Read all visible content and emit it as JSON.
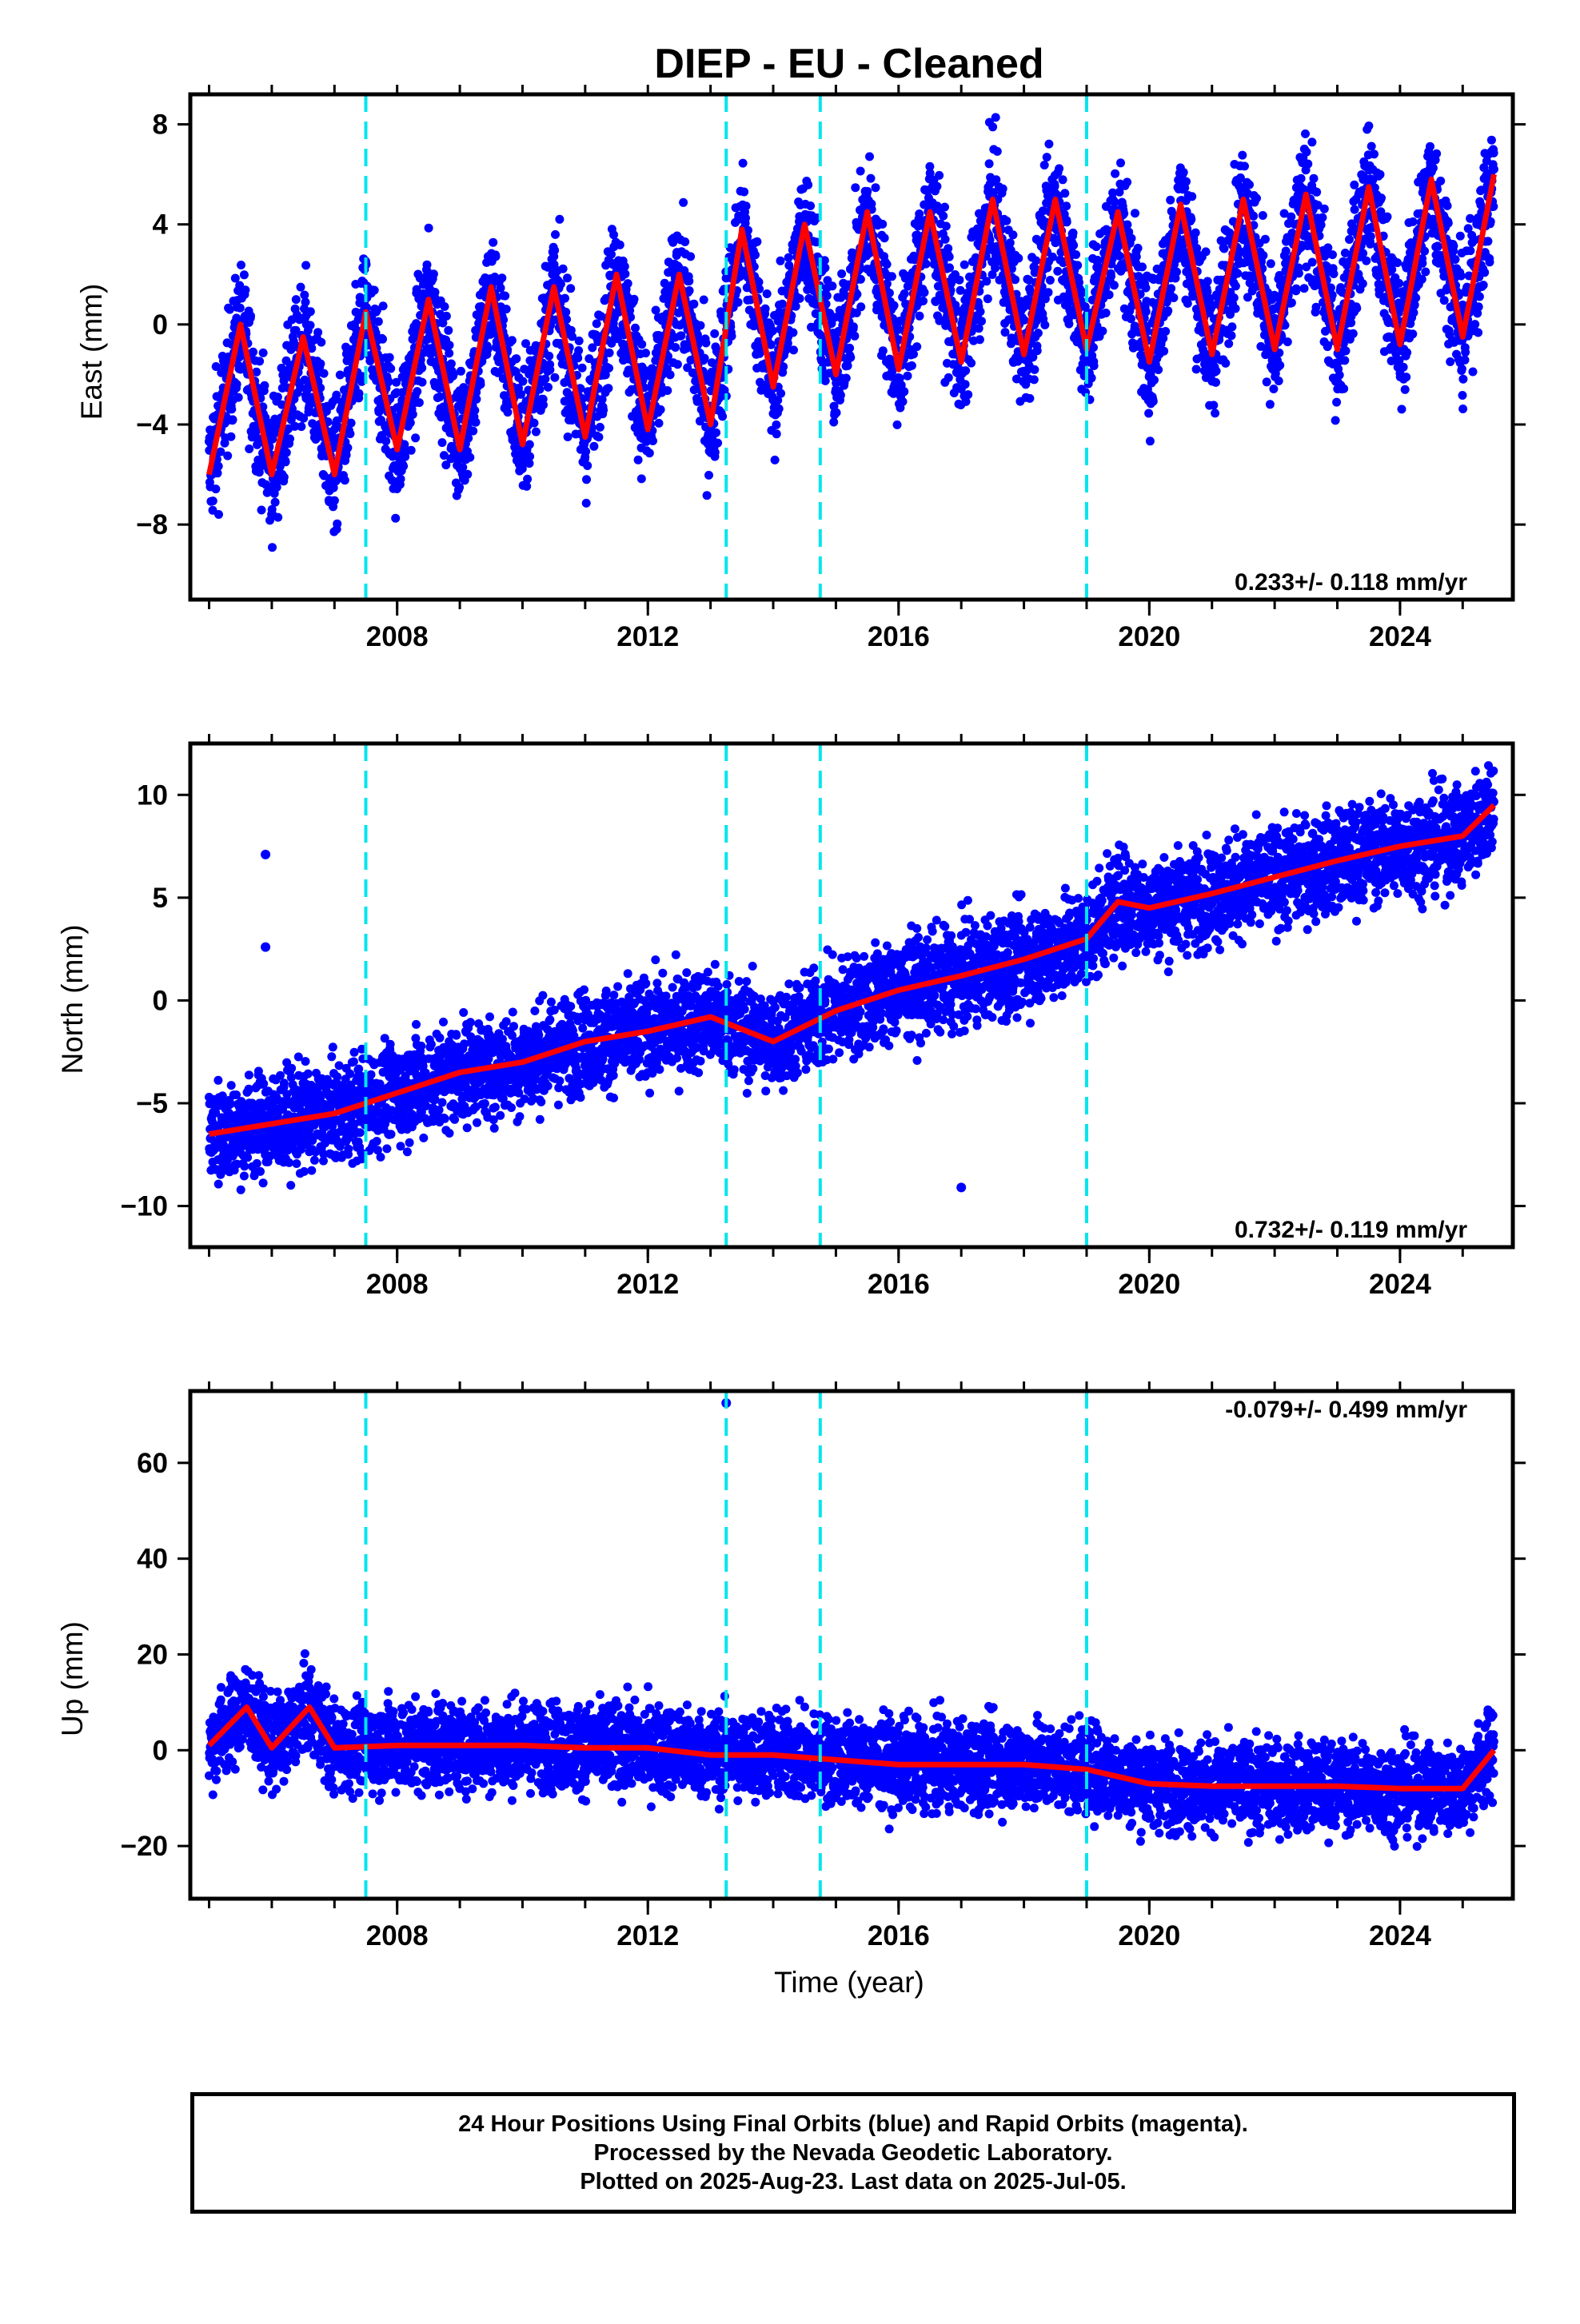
{
  "title": "DIEP  - EU - Cleaned",
  "x_label": "Time (year)",
  "footer": {
    "line1": "24 Hour Positions Using Final Orbits (blue) and Rapid Orbits (magenta).",
    "line2": "Processed by the Nevada Geodetic Laboratory.",
    "line3": "Plotted on 2025-Aug-23. Last data on 2025-Jul-05."
  },
  "colors": {
    "final_orbits": "#0000ff",
    "model": "#ff0000",
    "steps": "#00e5ee",
    "frame": "#000000"
  },
  "chart_data": [
    {
      "type": "scatter",
      "component": "East",
      "ylabel": "East (mm)",
      "xlim": [
        2004.7,
        2025.8
      ],
      "ylim": [
        -11,
        9.2
      ],
      "x_ticks": [
        2008,
        2012,
        2016,
        2020,
        2024
      ],
      "y_ticks": [
        -8,
        -4,
        0,
        4,
        8
      ],
      "y_tick_labels": [
        "−8",
        "−4",
        "0",
        "4",
        "8"
      ],
      "rate_text": "0.233+/- 0.118 mm/yr",
      "rate_position": "bottom-right",
      "trend_mm_per_yr": 0.233,
      "seasonal_amplitude_mm": 3.0,
      "scatter_mm": 1.3,
      "step_epochs": [
        2007.5,
        2013.25,
        2014.75,
        2019.0
      ],
      "data_start": 2005.0,
      "data_end": 2025.5,
      "series": [
        {
          "name": "Final Orbits",
          "color": "blue",
          "samples": [
            [
              2005.0,
              -6.0
            ],
            [
              2005.5,
              0.0
            ],
            [
              2006.0,
              -6.0
            ],
            [
              2006.5,
              -0.5
            ],
            [
              2007.0,
              -6.0
            ],
            [
              2007.5,
              0.5
            ],
            [
              2008.0,
              -5.0
            ],
            [
              2008.5,
              1.0
            ],
            [
              2009.0,
              -5.0
            ],
            [
              2009.5,
              1.5
            ],
            [
              2010.0,
              -4.8
            ],
            [
              2010.5,
              1.5
            ],
            [
              2011.0,
              -4.5
            ],
            [
              2011.5,
              2.0
            ],
            [
              2012.0,
              -4.2
            ],
            [
              2012.5,
              2.0
            ],
            [
              2013.0,
              -4.0
            ],
            [
              2013.5,
              3.8
            ],
            [
              2014.0,
              -2.5
            ],
            [
              2014.5,
              4.0
            ],
            [
              2015.0,
              -2.0
            ],
            [
              2015.5,
              4.5
            ],
            [
              2016.0,
              -1.8
            ],
            [
              2016.5,
              4.5
            ],
            [
              2017.0,
              -1.5
            ],
            [
              2017.5,
              5.0
            ],
            [
              2018.0,
              -1.2
            ],
            [
              2018.5,
              5.0
            ],
            [
              2019.0,
              -1.0
            ],
            [
              2019.5,
              4.5
            ],
            [
              2020.0,
              -1.5
            ],
            [
              2020.5,
              4.8
            ],
            [
              2021.0,
              -1.2
            ],
            [
              2021.5,
              5.0
            ],
            [
              2022.0,
              -1.0
            ],
            [
              2022.5,
              5.2
            ],
            [
              2023.0,
              -1.0
            ],
            [
              2023.5,
              5.5
            ],
            [
              2024.0,
              -0.8
            ],
            [
              2024.5,
              5.8
            ],
            [
              2025.0,
              -0.5
            ],
            [
              2025.5,
              6.0
            ]
          ]
        },
        {
          "name": "Model",
          "color": "red"
        }
      ]
    },
    {
      "type": "scatter",
      "component": "North",
      "ylabel": "North (mm)",
      "xlim": [
        2004.7,
        2025.8
      ],
      "ylim": [
        -12,
        12.5
      ],
      "x_ticks": [
        2008,
        2012,
        2016,
        2020,
        2024
      ],
      "y_ticks": [
        -10,
        -5,
        0,
        5,
        10
      ],
      "y_tick_labels": [
        "−10",
        "−5",
        "0",
        "5",
        "10"
      ],
      "rate_text": "0.732+/- 0.119 mm/yr",
      "rate_position": "bottom-right",
      "trend_mm_per_yr": 0.732,
      "seasonal_amplitude_mm": 0.8,
      "scatter_mm": 1.2,
      "step_epochs": [
        2007.5,
        2013.25,
        2014.75,
        2019.0
      ],
      "data_start": 2005.0,
      "data_end": 2025.5,
      "series": [
        {
          "name": "Final Orbits",
          "color": "blue",
          "samples": [
            [
              2005.0,
              -6.5
            ],
            [
              2006.0,
              -6.0
            ],
            [
              2007.0,
              -5.5
            ],
            [
              2008.0,
              -4.5
            ],
            [
              2009.0,
              -3.5
            ],
            [
              2010.0,
              -3.0
            ],
            [
              2011.0,
              -2.0
            ],
            [
              2012.0,
              -1.5
            ],
            [
              2013.0,
              -0.8
            ],
            [
              2014.0,
              -2.0
            ],
            [
              2015.0,
              -0.5
            ],
            [
              2016.0,
              0.5
            ],
            [
              2017.0,
              1.2
            ],
            [
              2018.0,
              2.0
            ],
            [
              2019.0,
              3.0
            ],
            [
              2019.5,
              4.8
            ],
            [
              2020.0,
              4.5
            ],
            [
              2021.0,
              5.2
            ],
            [
              2022.0,
              6.0
            ],
            [
              2023.0,
              6.8
            ],
            [
              2024.0,
              7.5
            ],
            [
              2025.0,
              8.0
            ],
            [
              2025.5,
              9.5
            ]
          ]
        },
        {
          "name": "Model",
          "color": "red"
        }
      ],
      "outliers": [
        [
          2005.9,
          7.1
        ],
        [
          2005.9,
          2.6
        ],
        [
          2017.0,
          -9.1
        ]
      ]
    },
    {
      "type": "scatter",
      "component": "Up",
      "ylabel": "Up (mm)",
      "xlim": [
        2004.7,
        2025.8
      ],
      "ylim": [
        -31,
        75
      ],
      "x_ticks": [
        2008,
        2012,
        2016,
        2020,
        2024
      ],
      "y_ticks": [
        -20,
        0,
        20,
        40,
        60
      ],
      "y_tick_labels": [
        "−20",
        "0",
        "20",
        "40",
        "60"
      ],
      "rate_text": "-0.079+/- 0.499 mm/yr",
      "rate_position": "top-right",
      "trend_mm_per_yr": -0.079,
      "seasonal_amplitude_mm": 5.0,
      "scatter_mm": 4.5,
      "step_epochs": [
        2007.5,
        2013.25,
        2014.75,
        2019.0
      ],
      "data_start": 2005.0,
      "data_end": 2025.5,
      "series": [
        {
          "name": "Final Orbits",
          "color": "blue",
          "samples": [
            [
              2005.0,
              1.0
            ],
            [
              2005.6,
              9.0
            ],
            [
              2006.0,
              0.5
            ],
            [
              2006.6,
              9.0
            ],
            [
              2007.0,
              0.5
            ],
            [
              2008.0,
              1.0
            ],
            [
              2009.0,
              1.0
            ],
            [
              2010.0,
              1.0
            ],
            [
              2011.0,
              0.5
            ],
            [
              2012.0,
              0.5
            ],
            [
              2013.0,
              -1.0
            ],
            [
              2014.0,
              -1.0
            ],
            [
              2015.0,
              -2.0
            ],
            [
              2016.0,
              -3.0
            ],
            [
              2017.0,
              -3.0
            ],
            [
              2018.0,
              -3.0
            ],
            [
              2019.0,
              -4.0
            ],
            [
              2020.0,
              -7.0
            ],
            [
              2021.0,
              -7.5
            ],
            [
              2022.0,
              -7.5
            ],
            [
              2023.0,
              -7.5
            ],
            [
              2024.0,
              -8.0
            ],
            [
              2025.0,
              -8.0
            ],
            [
              2025.5,
              0.0
            ]
          ]
        },
        {
          "name": "Model",
          "color": "red"
        }
      ],
      "outliers": [
        [
          2013.25,
          72.5
        ]
      ]
    }
  ]
}
